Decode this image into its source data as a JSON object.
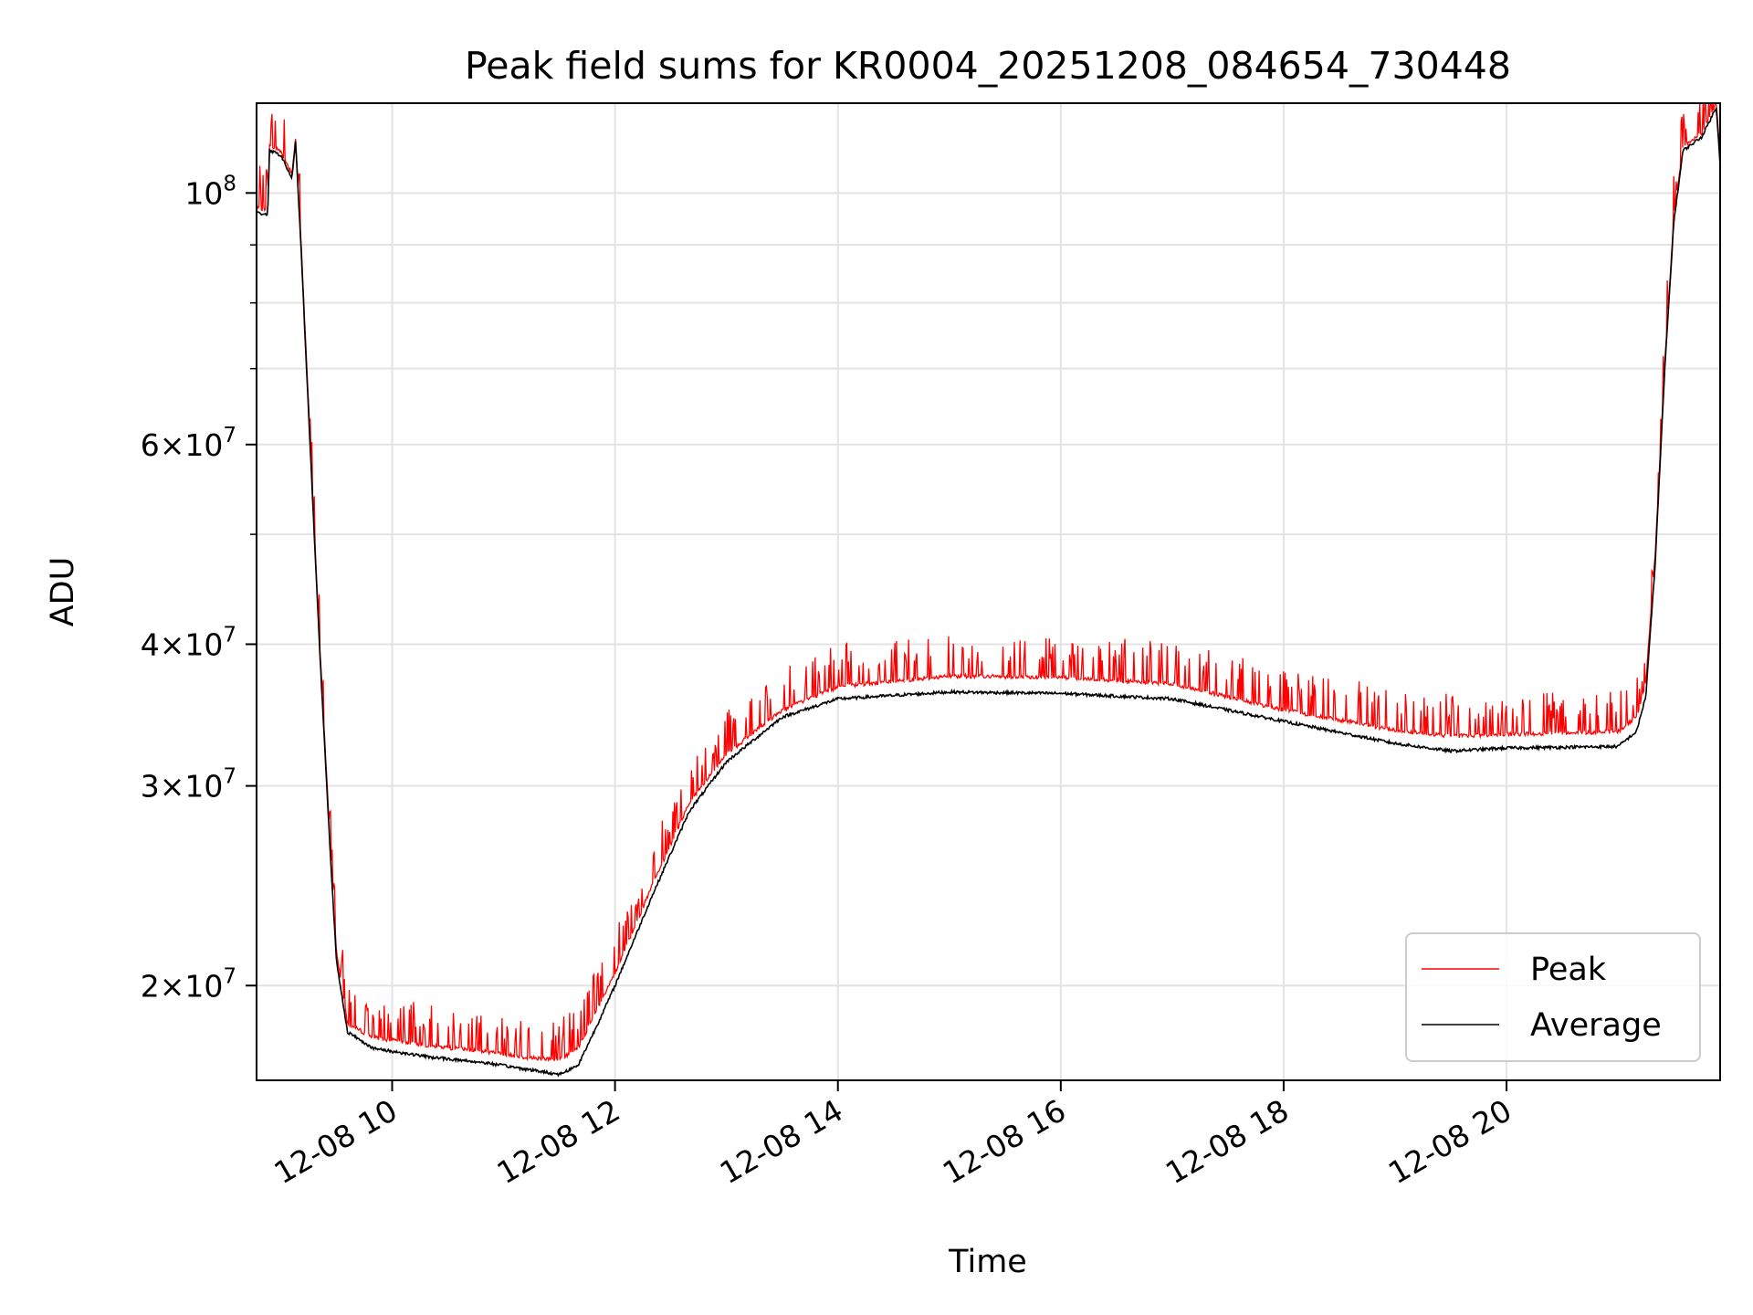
{
  "chart_data": {
    "type": "line",
    "title": "Peak field sums for KR0004_20251208_084654_730448",
    "xlabel": "Time",
    "ylabel": "ADU",
    "yscale": "log",
    "grid": true,
    "legend_position": "lower-right",
    "xlim": [
      "2025-12-08 08:47",
      "2025-12-08 21:55"
    ],
    "ylim": [
      16500000,
      120000000
    ],
    "x_ticks": [
      {
        "t": "2025-12-08 10:00",
        "label": "12-08 10"
      },
      {
        "t": "2025-12-08 12:00",
        "label": "12-08 12"
      },
      {
        "t": "2025-12-08 14:00",
        "label": "12-08 14"
      },
      {
        "t": "2025-12-08 16:00",
        "label": "12-08 16"
      },
      {
        "t": "2025-12-08 18:00",
        "label": "12-08 18"
      },
      {
        "t": "2025-12-08 20:00",
        "label": "12-08 20"
      }
    ],
    "y_ticks": [
      {
        "value": 20000000,
        "mant": "2",
        "exp": "7"
      },
      {
        "value": 30000000,
        "mant": "3",
        "exp": "7"
      },
      {
        "value": 40000000,
        "mant": "4",
        "exp": "7"
      },
      {
        "value": 60000000,
        "mant": "6",
        "exp": "7"
      },
      {
        "value": 100000000,
        "mant": "",
        "exp": "8"
      }
    ],
    "series": [
      {
        "name": "Peak",
        "color": "#ff0000",
        "points": [
          [
            "2025-12-08 08:47",
            97000000
          ],
          [
            "2025-12-08 08:53",
            96800000
          ],
          [
            "2025-12-08 08:54",
            110000000
          ],
          [
            "2025-12-08 09:00",
            109000000
          ],
          [
            "2025-12-08 09:06",
            104000000
          ],
          [
            "2025-12-08 09:08",
            112000000
          ],
          [
            "2025-12-08 09:11",
            90000000
          ],
          [
            "2025-12-08 09:16",
            60000000
          ],
          [
            "2025-12-08 09:21",
            40000000
          ],
          [
            "2025-12-08 09:26",
            28000000
          ],
          [
            "2025-12-08 09:30",
            21500000
          ],
          [
            "2025-12-08 09:36",
            18500000
          ],
          [
            "2025-12-08 09:50",
            18000000
          ],
          [
            "2025-12-08 10:20",
            17700000
          ],
          [
            "2025-12-08 10:50",
            17500000
          ],
          [
            "2025-12-08 11:10",
            17300000
          ],
          [
            "2025-12-08 11:30",
            17200000
          ],
          [
            "2025-12-08 11:40",
            17600000
          ],
          [
            "2025-12-08 11:50",
            19000000
          ],
          [
            "2025-12-08 12:00",
            20500000
          ],
          [
            "2025-12-08 12:20",
            24500000
          ],
          [
            "2025-12-08 12:40",
            29000000
          ],
          [
            "2025-12-08 13:00",
            32000000
          ],
          [
            "2025-12-08 13:30",
            35000000
          ],
          [
            "2025-12-08 14:00",
            36700000
          ],
          [
            "2025-12-08 15:00",
            37500000
          ],
          [
            "2025-12-08 16:00",
            37400000
          ],
          [
            "2025-12-08 17:00",
            36900000
          ],
          [
            "2025-12-08 18:00",
            35000000
          ],
          [
            "2025-12-08 19:00",
            33600000
          ],
          [
            "2025-12-08 19:30",
            33200000
          ],
          [
            "2025-12-08 20:00",
            33300000
          ],
          [
            "2025-12-08 21:00",
            33500000
          ],
          [
            "2025-12-08 21:10",
            34500000
          ],
          [
            "2025-12-08 21:15",
            37000000
          ],
          [
            "2025-12-08 21:20",
            48000000
          ],
          [
            "2025-12-08 21:25",
            70000000
          ],
          [
            "2025-12-08 21:30",
            95000000
          ],
          [
            "2025-12-08 21:35",
            110000000
          ],
          [
            "2025-12-08 21:45",
            113000000
          ],
          [
            "2025-12-08 21:53",
            120000000
          ],
          [
            "2025-12-08 21:55",
            108000000
          ]
        ]
      },
      {
        "name": "Average",
        "color": "#000000",
        "points": [
          [
            "2025-12-08 08:47",
            96000000
          ],
          [
            "2025-12-08 08:53",
            95800000
          ],
          [
            "2025-12-08 08:54",
            109000000
          ],
          [
            "2025-12-08 09:00",
            108000000
          ],
          [
            "2025-12-08 09:06",
            103000000
          ],
          [
            "2025-12-08 09:08",
            111000000
          ],
          [
            "2025-12-08 09:11",
            89000000
          ],
          [
            "2025-12-08 09:16",
            59000000
          ],
          [
            "2025-12-08 09:21",
            39500000
          ],
          [
            "2025-12-08 09:26",
            27500000
          ],
          [
            "2025-12-08 09:30",
            21000000
          ],
          [
            "2025-12-08 09:36",
            18200000
          ],
          [
            "2025-12-08 09:50",
            17600000
          ],
          [
            "2025-12-08 10:20",
            17300000
          ],
          [
            "2025-12-08 10:50",
            17100000
          ],
          [
            "2025-12-08 11:10",
            16900000
          ],
          [
            "2025-12-08 11:30",
            16700000
          ],
          [
            "2025-12-08 11:40",
            17000000
          ],
          [
            "2025-12-08 11:50",
            18400000
          ],
          [
            "2025-12-08 12:00",
            20000000
          ],
          [
            "2025-12-08 12:20",
            24000000
          ],
          [
            "2025-12-08 12:40",
            28500000
          ],
          [
            "2025-12-08 13:00",
            31500000
          ],
          [
            "2025-12-08 13:30",
            34500000
          ],
          [
            "2025-12-08 14:00",
            35800000
          ],
          [
            "2025-12-08 15:00",
            36300000
          ],
          [
            "2025-12-08 16:00",
            36200000
          ],
          [
            "2025-12-08 17:00",
            35800000
          ],
          [
            "2025-12-08 18:00",
            34200000
          ],
          [
            "2025-12-08 19:00",
            32700000
          ],
          [
            "2025-12-08 19:30",
            32200000
          ],
          [
            "2025-12-08 20:00",
            32400000
          ],
          [
            "2025-12-08 21:00",
            32500000
          ],
          [
            "2025-12-08 21:10",
            33500000
          ],
          [
            "2025-12-08 21:15",
            36000000
          ],
          [
            "2025-12-08 21:20",
            47000000
          ],
          [
            "2025-12-08 21:25",
            69000000
          ],
          [
            "2025-12-08 21:30",
            94000000
          ],
          [
            "2025-12-08 21:35",
            109000000
          ],
          [
            "2025-12-08 21:45",
            112000000
          ],
          [
            "2025-12-08 21:53",
            119000000
          ],
          [
            "2025-12-08 21:55",
            106000000
          ]
        ]
      }
    ]
  }
}
